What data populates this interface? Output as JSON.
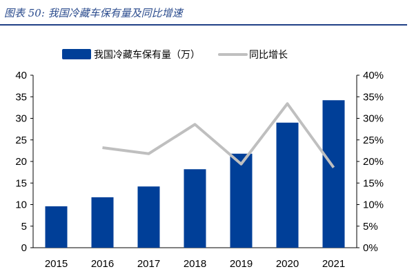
{
  "title": "图表 50: 我国冷藏车保有量及同比增速",
  "chart_data": {
    "type": "bar+line",
    "categories": [
      "2015",
      "2016",
      "2017",
      "2018",
      "2019",
      "2020",
      "2021"
    ],
    "series": [
      {
        "name": "我国冷藏车保有量（万）",
        "type": "bar",
        "axis": "left",
        "color": "#003f98",
        "values": [
          9.6,
          11.7,
          14.2,
          18.2,
          21.8,
          29.0,
          34.2
        ]
      },
      {
        "name": "同比增长",
        "type": "line",
        "axis": "right",
        "color": "#bfbfbf",
        "values": [
          null,
          23.2,
          21.8,
          28.6,
          19.4,
          33.4,
          18.6
        ]
      }
    ],
    "left_axis": {
      "ylim": [
        0,
        40
      ],
      "ticks": [
        "0",
        "5",
        "10",
        "15",
        "20",
        "25",
        "30",
        "35",
        "40"
      ]
    },
    "right_axis": {
      "ylim": [
        0,
        40
      ],
      "ticks": [
        "0%",
        "5%",
        "10%",
        "15%",
        "20%",
        "25%",
        "30%",
        "35%",
        "40%"
      ]
    },
    "grid": false,
    "legend": "top"
  }
}
